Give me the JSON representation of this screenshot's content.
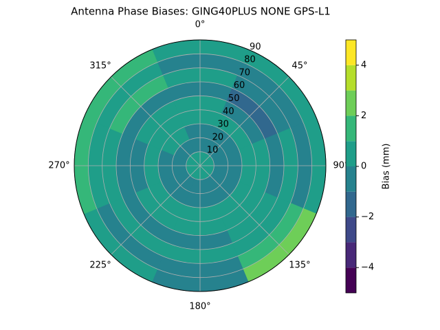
{
  "chart_data": {
    "type": "polar-contour",
    "title": "Antenna Phase Biases: GING40PLUS      NONE GPS-L1",
    "colorbar_label": "Bias (mm)",
    "theta": [
      0,
      45,
      90,
      135,
      180,
      225,
      270,
      315
    ],
    "r": [
      5,
      15,
      25,
      35,
      45,
      55,
      65,
      75,
      85
    ],
    "values": [
      [
        0.5,
        0.5,
        0.5,
        0.5,
        0.5,
        0.5,
        0.5,
        0.5
      ],
      [
        -0.5,
        -0.5,
        -0.5,
        -0.5,
        -0.5,
        -0.5,
        -0.5,
        -0.5
      ],
      [
        -0.5,
        -0.5,
        -0.5,
        -0.5,
        -0.5,
        -0.5,
        -0.5,
        0.5
      ],
      [
        0.5,
        0.5,
        0.5,
        0.5,
        0.5,
        0.5,
        0.5,
        0.5
      ],
      [
        0.5,
        -0.5,
        0.5,
        0.5,
        0.5,
        0.5,
        -0.5,
        0.5
      ],
      [
        -0.5,
        -1.5,
        -0.5,
        0.5,
        -0.5,
        -0.5,
        -0.5,
        -0.5
      ],
      [
        0.5,
        -0.5,
        0.5,
        0.5,
        0.5,
        0.5,
        0.5,
        1.5
      ],
      [
        -0.5,
        -0.5,
        -0.5,
        1.5,
        -0.5,
        -0.5,
        0.5,
        0.5
      ],
      [
        0.5,
        0.5,
        0.5,
        2.5,
        -0.5,
        0.5,
        1.5,
        1.5
      ]
    ],
    "levels": [
      -5,
      -4,
      -3,
      -2,
      -1,
      0,
      1,
      2,
      3,
      4,
      5
    ],
    "colors": [
      "#440154",
      "#482878",
      "#3e4989",
      "#31688e",
      "#26828e",
      "#1f9e89",
      "#35b779",
      "#6ece58",
      "#b5de2b",
      "#fde725"
    ],
    "rlim": [
      0,
      90
    ],
    "rticks": [
      10,
      20,
      30,
      40,
      50,
      60,
      70,
      80,
      90
    ],
    "thetaticks": [
      {
        "value": 0,
        "label": "0°"
      },
      {
        "value": 45,
        "label": "45°"
      },
      {
        "value": 90,
        "label": "90°"
      },
      {
        "value": 135,
        "label": "135°"
      },
      {
        "value": 180,
        "label": "180°"
      },
      {
        "value": 225,
        "label": "225°"
      },
      {
        "value": 270,
        "label": "270°"
      },
      {
        "value": 315,
        "label": "315°"
      }
    ],
    "clim": [
      -5,
      5
    ],
    "cticks": [
      {
        "value": -4,
        "label": "−4"
      },
      {
        "value": -2,
        "label": "−2"
      },
      0,
      2,
      4
    ],
    "grid": true
  }
}
